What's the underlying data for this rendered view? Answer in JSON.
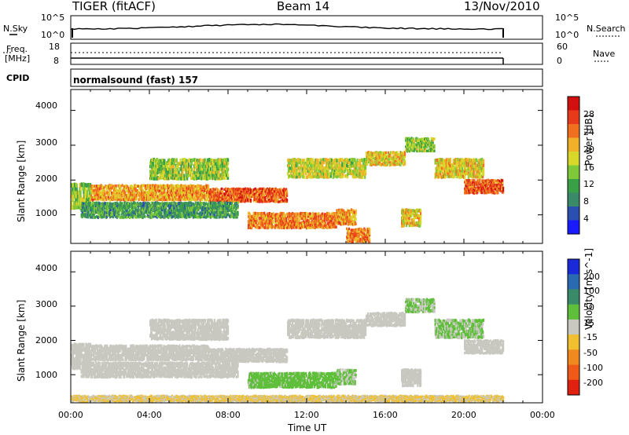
{
  "header": {
    "station": "TIGER (fitACF)",
    "beam": "Beam 14",
    "date": "13/Nov/2010"
  },
  "summary": {
    "nsky_label": "N.Sky",
    "nsearch_label": "N.Search",
    "freq_label_line1": "Freq.",
    "freq_label_line2": "[MHz]",
    "nave_label": "Nave",
    "cpid_label": "CPID",
    "cpid_value": "normalsound (fast) 157",
    "noise_left_ticks": [
      "10^5",
      "10^0"
    ],
    "noise_right_ticks": [
      "10^5",
      "10^0"
    ],
    "freq_left_ticks": [
      "18",
      "8"
    ],
    "nave_right_ticks": [
      "60",
      "0"
    ]
  },
  "chart_data": [
    {
      "type": "heatmap",
      "panel": "power",
      "ylabel": "Slant Range [km]",
      "xlabel": "Time UT",
      "x_ticks": [
        "00:00",
        "04:00",
        "08:00",
        "12:00",
        "16:00",
        "20:00",
        "00:00"
      ],
      "x_range_hours": [
        0,
        24
      ],
      "data_end_hours": 22,
      "ylim": [
        180,
        4600
      ],
      "y_ticks": [
        1000,
        2000,
        3000,
        4000
      ],
      "colorbar": {
        "label": "Power [dB]",
        "ticks": [
          "4",
          "8",
          "12",
          "16",
          "20",
          "24",
          "28"
        ],
        "range": [
          0,
          30
        ],
        "colors": [
          "#1a1aff",
          "#2a4fb0",
          "#3a8a6a",
          "#3aa048",
          "#7ec83a",
          "#d8d82a",
          "#f0b02a",
          "#f07020",
          "#e63a1a",
          "#d21010"
        ]
      },
      "echo_bands": [
        {
          "t0": 0.0,
          "t1": 1.0,
          "r0": 1150,
          "r1": 1900,
          "level": 14
        },
        {
          "t0": 1.0,
          "t1": 7.0,
          "r0": 1400,
          "r1": 1850,
          "level": 20
        },
        {
          "t0": 4.0,
          "t1": 8.0,
          "r0": 2000,
          "r1": 2600,
          "level": 14
        },
        {
          "t0": 7.0,
          "t1": 11.0,
          "r0": 1350,
          "r1": 1750,
          "level": 24
        },
        {
          "t0": 11.0,
          "t1": 15.0,
          "r0": 2050,
          "r1": 2600,
          "level": 16
        },
        {
          "t0": 15.0,
          "t1": 17.0,
          "r0": 2400,
          "r1": 2800,
          "level": 18
        },
        {
          "t0": 17.0,
          "t1": 18.5,
          "r0": 2800,
          "r1": 3200,
          "level": 14
        },
        {
          "t0": 18.5,
          "t1": 21.0,
          "r0": 2050,
          "r1": 2600,
          "level": 18
        },
        {
          "t0": 20.0,
          "t1": 22.0,
          "r0": 1600,
          "r1": 2000,
          "level": 24
        },
        {
          "t0": 0.5,
          "t1": 8.5,
          "r0": 900,
          "r1": 1350,
          "level": 10
        },
        {
          "t0": 9.0,
          "t1": 13.5,
          "r0": 600,
          "r1": 1050,
          "level": 22
        },
        {
          "t0": 13.5,
          "t1": 14.5,
          "r0": 700,
          "r1": 1150,
          "level": 20
        },
        {
          "t0": 16.8,
          "t1": 17.8,
          "r0": 650,
          "r1": 1150,
          "level": 18
        },
        {
          "t0": 14.0,
          "t1": 15.2,
          "r0": 200,
          "r1": 600,
          "level": 22
        }
      ]
    },
    {
      "type": "heatmap",
      "panel": "velocity",
      "ylabel": "Slant Range [km]",
      "xlabel": "Time UT",
      "x_ticks": [
        "00:00",
        "04:00",
        "08:00",
        "12:00",
        "16:00",
        "20:00",
        "00:00"
      ],
      "x_range_hours": [
        0,
        24
      ],
      "data_end_hours": 22,
      "ylim": [
        180,
        4600
      ],
      "y_ticks": [
        1000,
        2000,
        3000,
        4000
      ],
      "colorbar": {
        "label": "Velocity [m s^-1]",
        "ticks": [
          "200",
          "100",
          "50",
          "15",
          "-15",
          "-50",
          "-100",
          "-200"
        ],
        "range": [
          -250,
          250
        ],
        "colors": [
          "#1a2ad8",
          "#2a6ab0",
          "#3a8a6a",
          "#5fbf3a",
          "#c8c8c0",
          "#f0c030",
          "#f08a20",
          "#f05a18",
          "#e02010"
        ]
      },
      "echo_bands": [
        {
          "t0": 0.0,
          "t1": 1.0,
          "r0": 1150,
          "r1": 1900,
          "level": 0
        },
        {
          "t0": 1.0,
          "t1": 7.0,
          "r0": 1400,
          "r1": 1850,
          "level": 0
        },
        {
          "t0": 4.0,
          "t1": 8.0,
          "r0": 2000,
          "r1": 2600,
          "level": 0
        },
        {
          "t0": 7.0,
          "t1": 11.0,
          "r0": 1350,
          "r1": 1750,
          "level": 0
        },
        {
          "t0": 11.0,
          "t1": 15.0,
          "r0": 2050,
          "r1": 2600,
          "level": 0
        },
        {
          "t0": 15.0,
          "t1": 17.0,
          "r0": 2400,
          "r1": 2800,
          "level": 0
        },
        {
          "t0": 17.0,
          "t1": 18.5,
          "r0": 2800,
          "r1": 3200,
          "level": 30
        },
        {
          "t0": 18.5,
          "t1": 21.0,
          "r0": 2050,
          "r1": 2600,
          "level": 30
        },
        {
          "t0": 20.0,
          "t1": 22.0,
          "r0": 1600,
          "r1": 2000,
          "level": 0
        },
        {
          "t0": 0.5,
          "t1": 8.5,
          "r0": 900,
          "r1": 1350,
          "level": 0
        },
        {
          "t0": 9.0,
          "t1": 13.5,
          "r0": 600,
          "r1": 1050,
          "level": 40
        },
        {
          "t0": 13.5,
          "t1": 14.5,
          "r0": 700,
          "r1": 1150,
          "level": 30
        },
        {
          "t0": 16.8,
          "t1": 17.8,
          "r0": 650,
          "r1": 1150,
          "level": 0
        },
        {
          "t0": 0.0,
          "t1": 22.0,
          "r0": 200,
          "r1": 380,
          "level": -30
        }
      ]
    }
  ]
}
